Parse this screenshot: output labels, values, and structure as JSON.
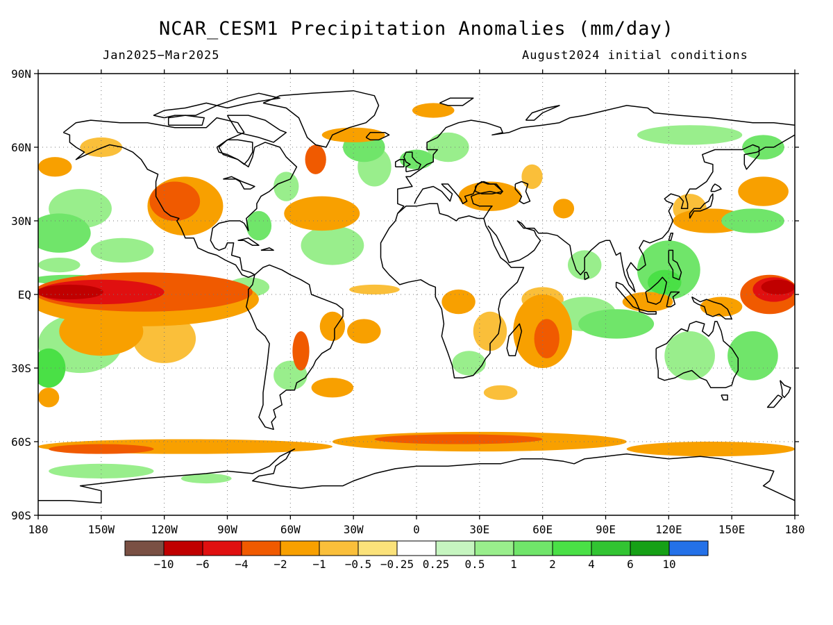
{
  "title": "NCAR_CESM1 Precipitation Anomalies (mm/day)",
  "subtitle_left": "Jan2025−Mar2025",
  "subtitle_right": "August2024 initial conditions",
  "map": {
    "lon_range": [
      -180,
      180
    ],
    "lat_range": [
      -90,
      90
    ],
    "grid": "dotted",
    "x_ticks": [
      {
        "lon": -180,
        "label": "180"
      },
      {
        "lon": -150,
        "label": "150W"
      },
      {
        "lon": -120,
        "label": "120W"
      },
      {
        "lon": -90,
        "label": "90W"
      },
      {
        "lon": -60,
        "label": "60W"
      },
      {
        "lon": -30,
        "label": "30W"
      },
      {
        "lon": 0,
        "label": "0"
      },
      {
        "lon": 30,
        "label": "30E"
      },
      {
        "lon": 60,
        "label": "60E"
      },
      {
        "lon": 90,
        "label": "90E"
      },
      {
        "lon": 120,
        "label": "120E"
      },
      {
        "lon": 150,
        "label": "150E"
      },
      {
        "lon": 180,
        "label": "180"
      }
    ],
    "y_ticks": [
      {
        "lat": 90,
        "label": "90N"
      },
      {
        "lat": 60,
        "label": "60N"
      },
      {
        "lat": 30,
        "label": "30N"
      },
      {
        "lat": 0,
        "label": "EQ"
      },
      {
        "lat": -30,
        "label": "30S"
      },
      {
        "lat": -60,
        "label": "60S"
      },
      {
        "lat": -90,
        "label": "90S"
      }
    ]
  },
  "colorbar": {
    "colors": [
      "#7a5044",
      "#c00000",
      "#e01010",
      "#f05a00",
      "#f8a000",
      "#fabf3a",
      "#fbe27a",
      "#ffffff",
      "#c6f5c0",
      "#99ee8c",
      "#70e56a",
      "#4ae046",
      "#32c432",
      "#16a016",
      "#2471e8"
    ],
    "labels": [
      "−10",
      "−6",
      "−4",
      "−2",
      "−1",
      "−0.5",
      "−0.25",
      "0.25",
      "0.5",
      "1",
      "2",
      "4",
      "6",
      "10"
    ]
  },
  "anomaly_regions": [
    {
      "lon": -165,
      "lat": 1,
      "rx": 16,
      "ry": 3,
      "level": -6
    },
    {
      "lon": -150,
      "lat": 1,
      "rx": 30,
      "ry": 5,
      "level": -4
    },
    {
      "lon": -130,
      "lat": 1,
      "rx": 52,
      "ry": 8,
      "level": -2
    },
    {
      "lon": -130,
      "lat": -2,
      "rx": 55,
      "ry": 11,
      "level": -1
    },
    {
      "lon": -150,
      "lat": -15,
      "rx": 20,
      "ry": 10,
      "level": -1
    },
    {
      "lon": -120,
      "lat": -18,
      "rx": 15,
      "ry": 10,
      "level": -0.5
    },
    {
      "lon": -165,
      "lat": 6,
      "rx": 18,
      "ry": 2,
      "level": 1
    },
    {
      "lon": -160,
      "lat": -20,
      "rx": 20,
      "ry": 12,
      "level": 0.5
    },
    {
      "lon": -175,
      "lat": -30,
      "rx": 8,
      "ry": 8,
      "level": 2
    },
    {
      "lon": -170,
      "lat": 25,
      "rx": 15,
      "ry": 8,
      "level": 1
    },
    {
      "lon": -160,
      "lat": 35,
      "rx": 15,
      "ry": 8,
      "level": 0.5
    },
    {
      "lon": -115,
      "lat": 38,
      "rx": 12,
      "ry": 8,
      "level": -2
    },
    {
      "lon": -110,
      "lat": 36,
      "rx": 18,
      "ry": 12,
      "level": -1
    },
    {
      "lon": -140,
      "lat": 18,
      "rx": 15,
      "ry": 5,
      "level": 0.5
    },
    {
      "lon": -150,
      "lat": 60,
      "rx": 10,
      "ry": 4,
      "level": -0.5
    },
    {
      "lon": -172,
      "lat": 52,
      "rx": 8,
      "ry": 4,
      "level": -1
    },
    {
      "lon": -45,
      "lat": 33,
      "rx": 18,
      "ry": 7,
      "level": -1
    },
    {
      "lon": -62,
      "lat": 44,
      "rx": 6,
      "ry": 6,
      "level": 0.5
    },
    {
      "lon": -48,
      "lat": 55,
      "rx": 5,
      "ry": 6,
      "level": -2
    },
    {
      "lon": -25,
      "lat": 60,
      "rx": 10,
      "ry": 6,
      "level": 1
    },
    {
      "lon": -20,
      "lat": 52,
      "rx": 8,
      "ry": 8,
      "level": 0.5
    },
    {
      "lon": -30,
      "lat": 65,
      "rx": 15,
      "ry": 3,
      "level": -1
    },
    {
      "lon": -40,
      "lat": 20,
      "rx": 15,
      "ry": 8,
      "level": 0.5
    },
    {
      "lon": -75,
      "lat": 28,
      "rx": 6,
      "ry": 6,
      "level": 1
    },
    {
      "lon": -80,
      "lat": 3,
      "rx": 10,
      "ry": 4,
      "level": 0.5
    },
    {
      "lon": -40,
      "lat": -13,
      "rx": 6,
      "ry": 6,
      "level": -1
    },
    {
      "lon": -55,
      "lat": -23,
      "rx": 4,
      "ry": 8,
      "level": -2
    },
    {
      "lon": -25,
      "lat": -15,
      "rx": 8,
      "ry": 5,
      "level": -1
    },
    {
      "lon": -40,
      "lat": -38,
      "rx": 10,
      "ry": 4,
      "level": -1
    },
    {
      "lon": -60,
      "lat": -33,
      "rx": 8,
      "ry": 6,
      "level": 0.5
    },
    {
      "lon": -20,
      "lat": 2,
      "rx": 12,
      "ry": 2,
      "level": -0.5
    },
    {
      "lon": 8,
      "lat": 75,
      "rx": 10,
      "ry": 3,
      "level": -1
    },
    {
      "lon": 15,
      "lat": 60,
      "rx": 10,
      "ry": 6,
      "level": 0.5
    },
    {
      "lon": 0,
      "lat": 55,
      "rx": 8,
      "ry": 4,
      "level": 1
    },
    {
      "lon": 35,
      "lat": 40,
      "rx": 15,
      "ry": 6,
      "level": -1
    },
    {
      "lon": 55,
      "lat": 48,
      "rx": 5,
      "ry": 5,
      "level": -0.5
    },
    {
      "lon": 70,
      "lat": 35,
      "rx": 5,
      "ry": 4,
      "level": -1
    },
    {
      "lon": 20,
      "lat": -3,
      "rx": 8,
      "ry": 5,
      "level": -1
    },
    {
      "lon": 35,
      "lat": -15,
      "rx": 8,
      "ry": 8,
      "level": -0.5
    },
    {
      "lon": 25,
      "lat": -28,
      "rx": 8,
      "ry": 5,
      "level": 0.5
    },
    {
      "lon": 40,
      "lat": -40,
      "rx": 8,
      "ry": 3,
      "level": -0.5
    },
    {
      "lon": 60,
      "lat": -15,
      "rx": 14,
      "ry": 15,
      "level": -1
    },
    {
      "lon": 62,
      "lat": -18,
      "rx": 6,
      "ry": 8,
      "level": -2
    },
    {
      "lon": 60,
      "lat": -2,
      "rx": 10,
      "ry": 5,
      "level": -0.5
    },
    {
      "lon": 80,
      "lat": -8,
      "rx": 15,
      "ry": 7,
      "level": 0.5
    },
    {
      "lon": 95,
      "lat": -12,
      "rx": 18,
      "ry": 6,
      "level": 1
    },
    {
      "lon": 80,
      "lat": 12,
      "rx": 8,
      "ry": 6,
      "level": 0.5
    },
    {
      "lon": 120,
      "lat": 10,
      "rx": 15,
      "ry": 12,
      "level": 1
    },
    {
      "lon": 118,
      "lat": 5,
      "rx": 8,
      "ry": 5,
      "level": 2
    },
    {
      "lon": 110,
      "lat": -3,
      "rx": 12,
      "ry": 4,
      "level": -1
    },
    {
      "lon": 145,
      "lat": -5,
      "rx": 10,
      "ry": 4,
      "level": -1
    },
    {
      "lon": 168,
      "lat": 0,
      "rx": 14,
      "ry": 8,
      "level": -2
    },
    {
      "lon": 172,
      "lat": 3,
      "rx": 8,
      "ry": 3,
      "level": -6
    },
    {
      "lon": 170,
      "lat": 2,
      "rx": 10,
      "ry": 5,
      "level": -4
    },
    {
      "lon": 140,
      "lat": 30,
      "rx": 18,
      "ry": 5,
      "level": -1
    },
    {
      "lon": 130,
      "lat": 35,
      "rx": 8,
      "ry": 6,
      "level": -0.5
    },
    {
      "lon": 165,
      "lat": 42,
      "rx": 12,
      "ry": 6,
      "level": -1
    },
    {
      "lon": 160,
      "lat": 30,
      "rx": 15,
      "ry": 5,
      "level": 1
    },
    {
      "lon": 130,
      "lat": -25,
      "rx": 12,
      "ry": 10,
      "level": 0.5
    },
    {
      "lon": 160,
      "lat": -25,
      "rx": 12,
      "ry": 10,
      "level": 1
    },
    {
      "lon": 165,
      "lat": 60,
      "rx": 10,
      "ry": 5,
      "level": 1
    },
    {
      "lon": 130,
      "lat": 65,
      "rx": 25,
      "ry": 4,
      "level": 0.5
    },
    {
      "lon": -110,
      "lat": -62,
      "rx": 70,
      "ry": 3,
      "level": -1
    },
    {
      "lon": -150,
      "lat": -63,
      "rx": 25,
      "ry": 2,
      "level": -2
    },
    {
      "lon": 30,
      "lat": -60,
      "rx": 70,
      "ry": 4,
      "level": -1
    },
    {
      "lon": 20,
      "lat": -59,
      "rx": 40,
      "ry": 2,
      "level": -2
    },
    {
      "lon": 140,
      "lat": -63,
      "rx": 40,
      "ry": 3,
      "level": -1
    },
    {
      "lon": -150,
      "lat": -72,
      "rx": 25,
      "ry": 3,
      "level": 0.5
    },
    {
      "lon": -100,
      "lat": -75,
      "rx": 12,
      "ry": 2,
      "level": 0.5
    },
    {
      "lon": -175,
      "lat": -42,
      "rx": 5,
      "ry": 4,
      "level": -1
    },
    {
      "lon": -170,
      "lat": 12,
      "rx": 10,
      "ry": 3,
      "level": 0.5
    }
  ]
}
